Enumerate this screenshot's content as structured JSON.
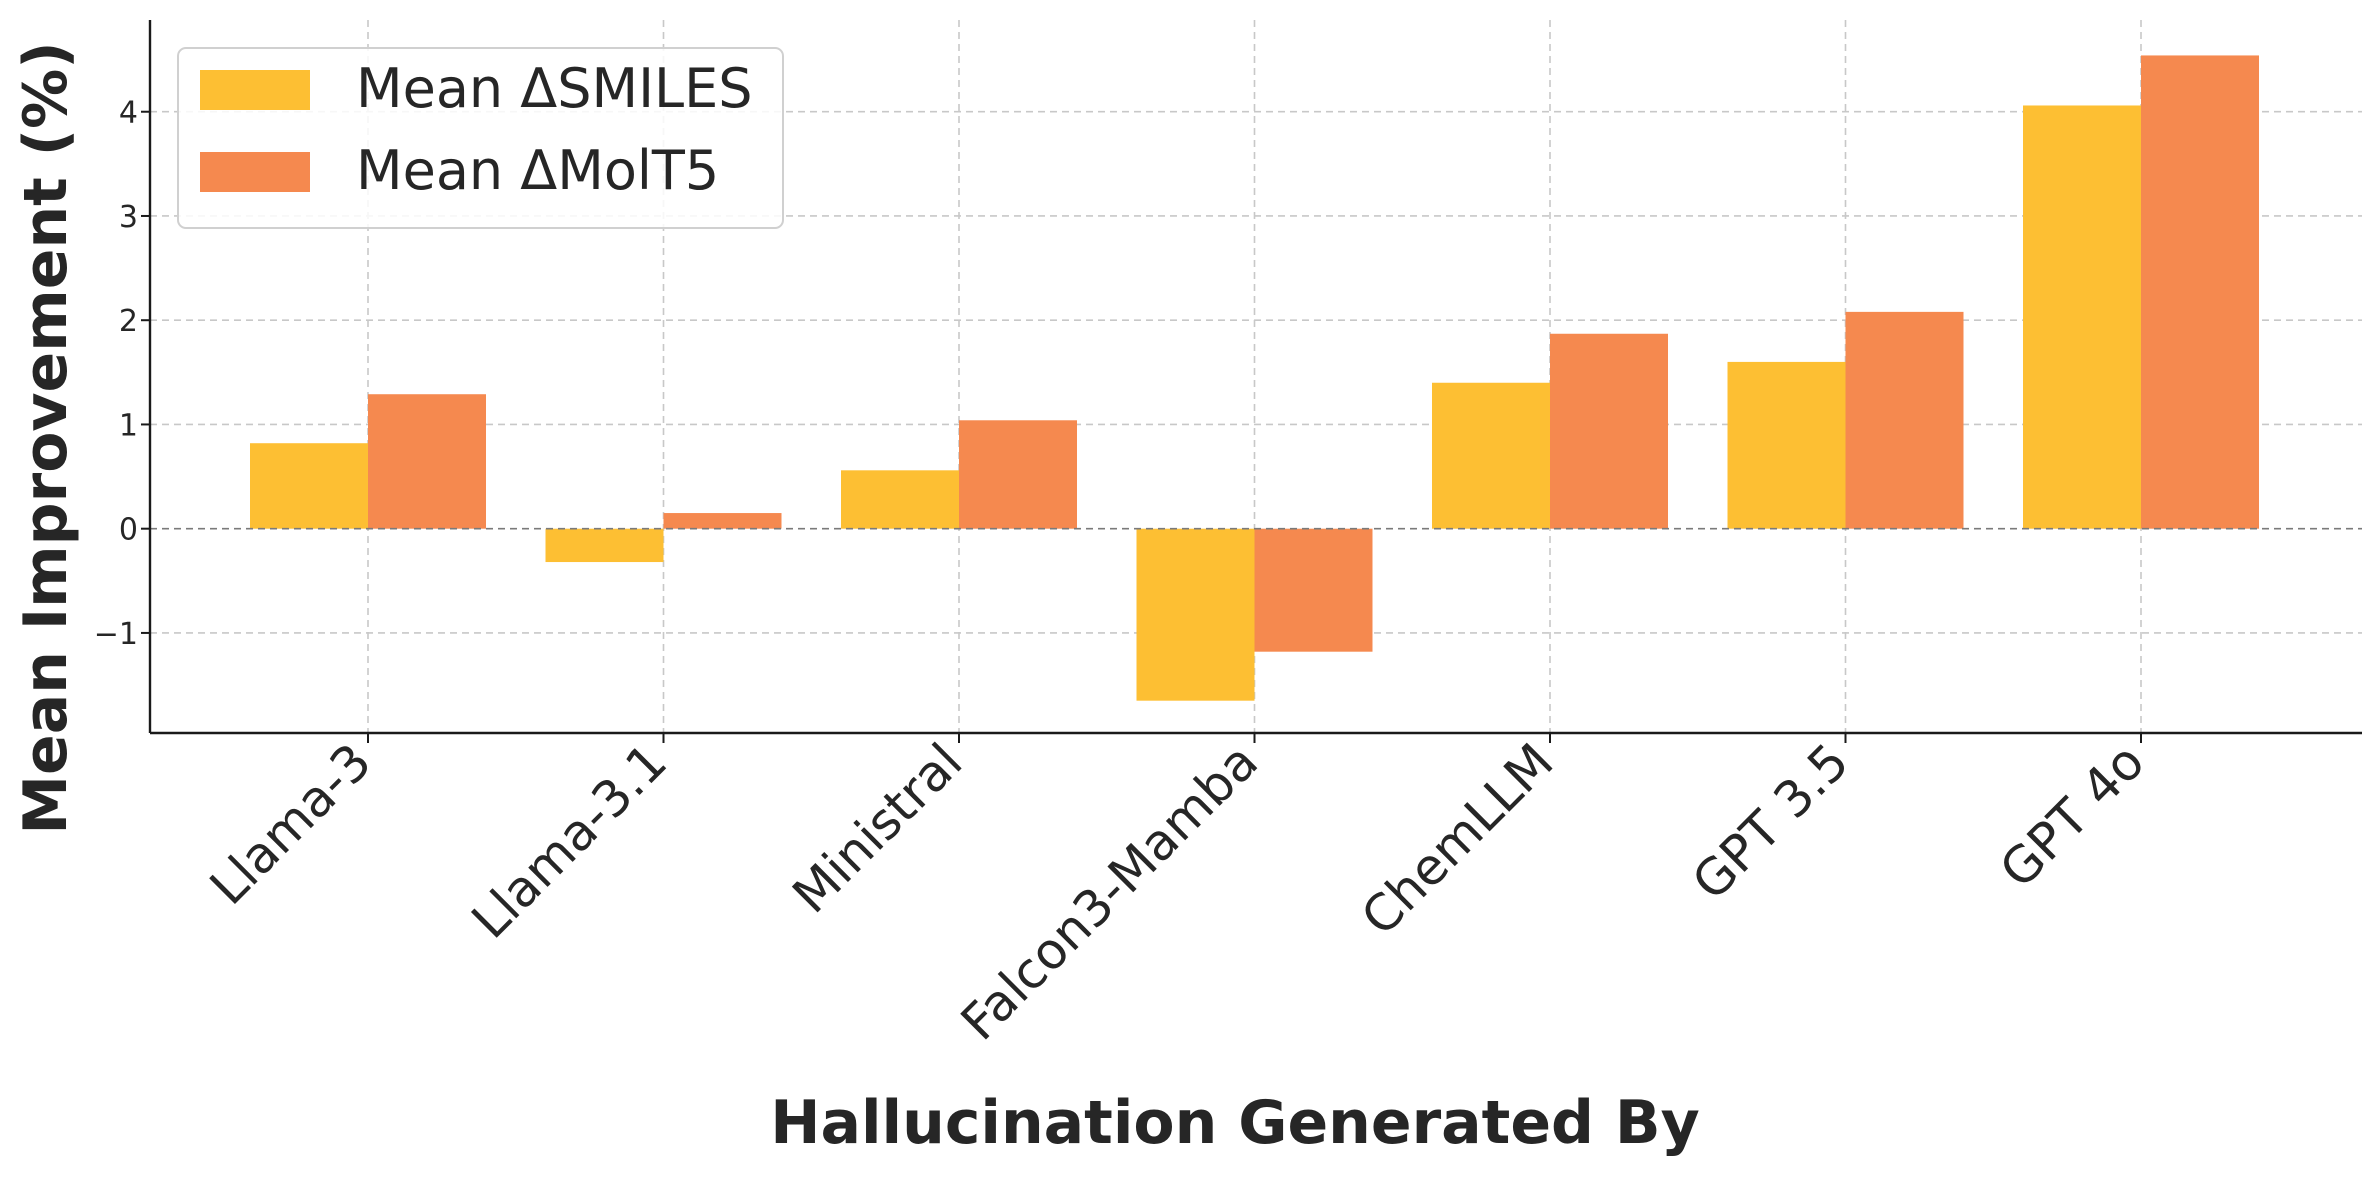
{
  "chart_data": {
    "type": "bar",
    "title": "",
    "xlabel": "Hallucination Generated By",
    "ylabel": "Mean Improvement (%)",
    "categories": [
      "Llama-3",
      "Llama-3.1",
      "Ministral",
      "Falcon3-Mamba",
      "ChemLLM",
      "GPT 3.5",
      "GPT 4o"
    ],
    "series": [
      {
        "name": "Mean ΔSMILES",
        "color": "#FDBF33",
        "values": [
          0.82,
          -0.32,
          0.56,
          -1.65,
          1.4,
          1.6,
          4.06
        ]
      },
      {
        "name": "Mean ΔMolT5",
        "color": "#F5894F",
        "values": [
          1.29,
          0.15,
          1.04,
          -1.18,
          1.87,
          2.08,
          4.54
        ]
      }
    ],
    "ylim": [
      -1.96,
      4.88
    ],
    "yticks": [
      -1,
      0,
      1,
      2,
      3,
      4
    ],
    "ytick_labels": [
      "−1",
      "0",
      "1",
      "2",
      "3",
      "4"
    ],
    "grid": true,
    "zero_reference_line": true,
    "legend_position": "top-left"
  }
}
